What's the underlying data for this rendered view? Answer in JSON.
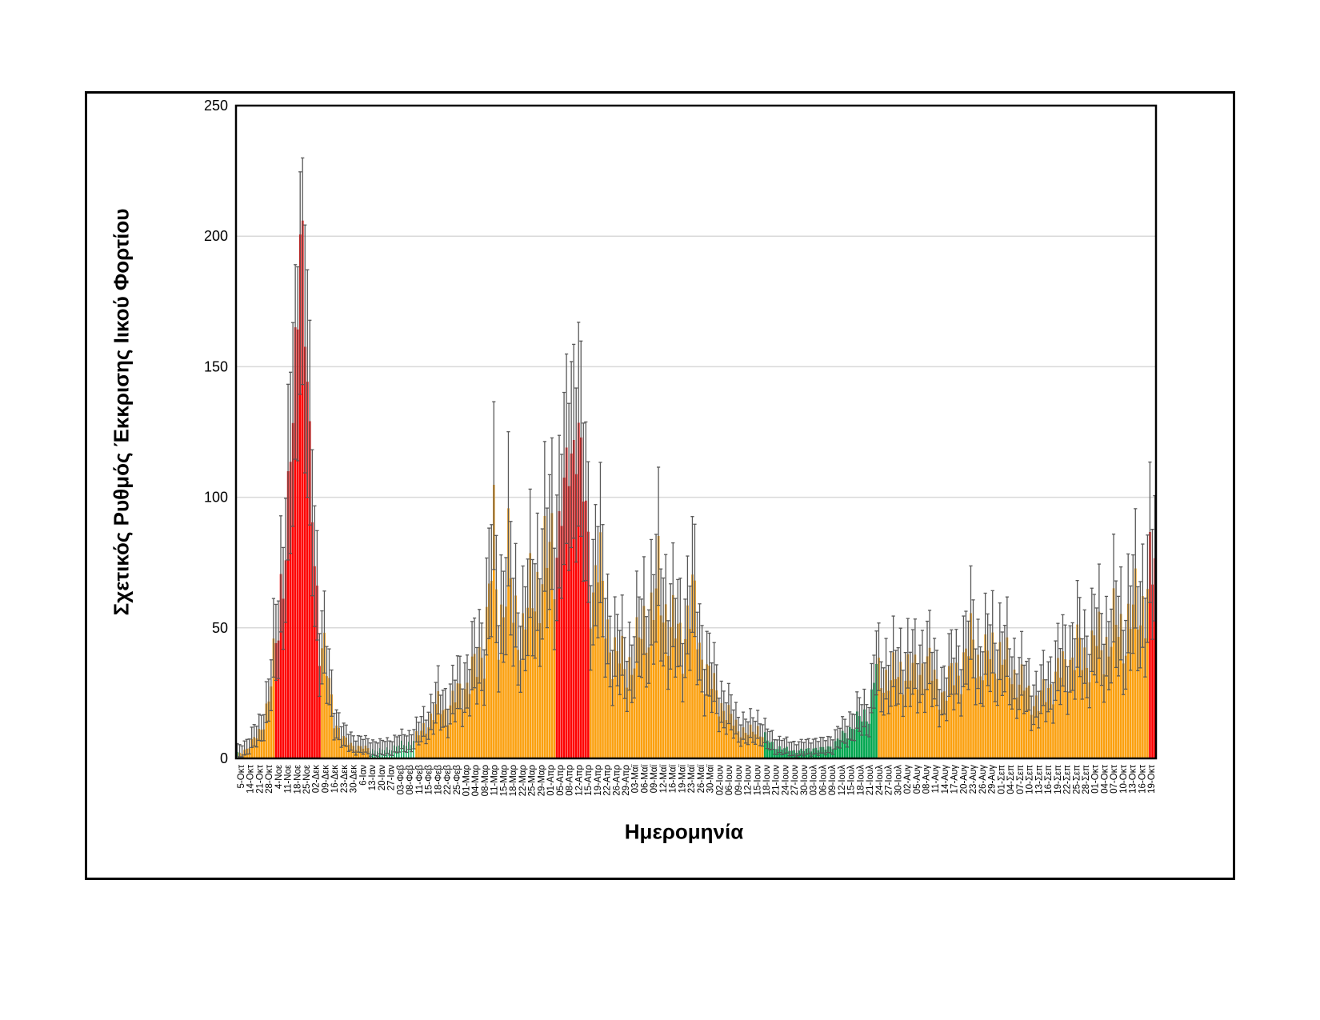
{
  "chart_data": {
    "type": "bar",
    "title": "",
    "ylabel": "Σχετικός Ρυθμός Έκκρισης Ιικού Φορτίου",
    "xlabel": "Ημερομηνία",
    "ylim": [
      0,
      250
    ],
    "yticks": [
      0,
      50,
      100,
      150,
      200,
      250
    ],
    "grid": "horizontal",
    "legend": "none",
    "n_bars": 380,
    "x_tick_labels": [
      "5-Οκτ",
      "14-Οκτ",
      "21-Οκτ",
      "28-Οκτ",
      "4-Νοε",
      "11-Νοε",
      "18-Νοε",
      "25-Νοε",
      "02-Δεκ",
      "09-Δεκ",
      "16-Δεκ",
      "23-Δεκ",
      "30-Δεκ",
      "6-Ιαν",
      "13-Ιαν",
      "20-Ιαν",
      "27-Ιαν",
      "03-Φεβ",
      "08-Φεβ",
      "11-Φεβ",
      "15-Φεβ",
      "18-Φεβ",
      "22-Φεβ",
      "25-Φεβ",
      "01-Μαρ",
      "04-Μαρ",
      "08-Μαρ",
      "11-Μαρ",
      "15-Μαρ",
      "18-Μαρ",
      "22-Μαρ",
      "25-Μαρ",
      "29-Μαρ",
      "01-Απρ",
      "05-Απρ",
      "08-Απρ",
      "12-Απρ",
      "15-Απρ",
      "19-Απρ",
      "22-Απρ",
      "26-Απρ",
      "29-Απρ",
      "03-Μαϊ",
      "06-Μαϊ",
      "09-Μαϊ",
      "12-Μαϊ",
      "16-Μαϊ",
      "19-Μαϊ",
      "23-Μαϊ",
      "26-Μαϊ",
      "30-Μαϊ",
      "02-Ιουν",
      "06-Ιουν",
      "09-Ιουν",
      "12-Ιουν",
      "15-Ιουν",
      "18-Ιουν",
      "21-Ιουν",
      "24-Ιουν",
      "27-Ιουν",
      "30-Ιουν",
      "03-Ιουλ",
      "06-Ιουλ",
      "09-Ιουλ",
      "12-Ιουλ",
      "15-Ιουλ",
      "18-Ιουλ",
      "21-Ιουλ",
      "24-Ιουλ",
      "27-Ιουλ",
      "30-Ιουλ",
      "02-Αυγ",
      "05-Αυγ",
      "08-Αυγ",
      "11-Αυγ",
      "14-Αυγ",
      "17-Αυγ",
      "20-Αυγ",
      "23-Αυγ",
      "26-Αυγ",
      "29-Αυγ",
      "01-Σεπ",
      "04-Σεπ",
      "07-Σεπ",
      "10-Σεπ",
      "13-Σεπ",
      "16-Σεπ",
      "19-Σεπ",
      "22-Σεπ",
      "25-Σεπ",
      "28-Σεπ",
      "01-Οκτ",
      "04-Οκτ",
      "07-Οκτ",
      "10-Οκτ",
      "13-Οκτ",
      "16-Οκτ",
      "19-Οκτ"
    ],
    "envelope_points_label_units": [
      [
        0,
        2
      ],
      [
        1,
        5
      ],
      [
        2,
        10
      ],
      [
        3,
        22
      ],
      [
        3.5,
        35
      ],
      [
        4,
        55
      ],
      [
        5,
        95
      ],
      [
        5.6,
        130
      ],
      [
        6,
        170
      ],
      [
        6.3,
        222
      ],
      [
        6.6,
        195
      ],
      [
        7,
        150
      ],
      [
        7.4,
        110
      ],
      [
        8,
        70
      ],
      [
        8.5,
        45
      ],
      [
        9,
        38
      ],
      [
        9.5,
        25
      ],
      [
        10,
        15
      ],
      [
        11,
        7
      ],
      [
        12,
        5
      ],
      [
        13,
        4
      ],
      [
        14,
        3.5
      ],
      [
        15,
        3
      ],
      [
        16,
        4
      ],
      [
        17,
        5
      ],
      [
        18,
        6
      ],
      [
        19,
        9
      ],
      [
        20,
        14
      ],
      [
        21,
        20
      ],
      [
        22,
        18
      ],
      [
        23,
        24
      ],
      [
        24,
        28
      ],
      [
        25,
        34
      ],
      [
        26,
        45
      ],
      [
        27,
        83
      ],
      [
        27.4,
        48
      ],
      [
        28,
        62
      ],
      [
        28.5,
        75
      ],
      [
        29,
        55
      ],
      [
        30,
        48
      ],
      [
        31,
        62
      ],
      [
        32,
        70
      ],
      [
        33,
        78
      ],
      [
        34,
        92
      ],
      [
        35,
        112
      ],
      [
        35.9,
        130
      ],
      [
        36.5,
        102
      ],
      [
        37,
        80
      ],
      [
        37.5,
        62
      ],
      [
        38,
        85
      ],
      [
        38.5,
        60
      ],
      [
        39,
        48
      ],
      [
        40,
        40
      ],
      [
        41,
        34
      ],
      [
        42,
        40
      ],
      [
        43,
        50
      ],
      [
        44,
        58
      ],
      [
        44.5,
        65
      ],
      [
        45,
        58
      ],
      [
        46,
        50
      ],
      [
        47,
        44
      ],
      [
        48,
        62
      ],
      [
        48.5,
        52
      ],
      [
        49,
        40
      ],
      [
        50,
        30
      ],
      [
        51,
        22
      ],
      [
        52,
        16
      ],
      [
        53,
        12
      ],
      [
        54,
        9
      ],
      [
        55,
        12
      ],
      [
        56,
        7
      ],
      [
        57,
        4.5
      ],
      [
        58,
        3.5
      ],
      [
        59,
        3
      ],
      [
        60,
        3
      ],
      [
        61,
        4
      ],
      [
        62,
        3.5
      ],
      [
        63,
        5
      ],
      [
        64,
        8
      ],
      [
        65,
        12
      ],
      [
        66,
        15
      ],
      [
        67,
        18
      ],
      [
        67.8,
        38
      ],
      [
        68,
        28
      ],
      [
        69,
        33
      ],
      [
        70,
        30
      ],
      [
        71,
        36
      ],
      [
        72,
        30
      ],
      [
        73,
        39
      ],
      [
        74,
        28
      ],
      [
        75,
        25
      ],
      [
        76,
        33
      ],
      [
        77,
        36
      ],
      [
        78,
        46
      ],
      [
        78.5,
        38
      ],
      [
        79,
        34
      ],
      [
        80,
        42
      ],
      [
        81,
        38
      ],
      [
        82,
        34
      ],
      [
        83,
        29
      ],
      [
        84,
        24
      ],
      [
        85,
        21
      ],
      [
        86,
        27
      ],
      [
        87,
        32
      ],
      [
        88,
        36
      ],
      [
        89,
        41
      ],
      [
        90,
        38
      ],
      [
        91,
        45
      ],
      [
        92,
        42
      ],
      [
        93,
        50
      ],
      [
        94,
        47
      ],
      [
        95,
        55
      ],
      [
        96,
        58
      ],
      [
        97,
        70
      ]
    ],
    "color_segments_bar_index": [
      {
        "from": 0,
        "to": 0,
        "color": "hatch"
      },
      {
        "from": 1,
        "to": 15,
        "color": "orange"
      },
      {
        "from": 16,
        "to": 34,
        "color": "red"
      },
      {
        "from": 35,
        "to": 54,
        "color": "orange"
      },
      {
        "from": 55,
        "to": 73,
        "color": "hatch"
      },
      {
        "from": 74,
        "to": 131,
        "color": "orange"
      },
      {
        "from": 132,
        "to": 145,
        "color": "red"
      },
      {
        "from": 146,
        "to": 217,
        "color": "orange"
      },
      {
        "from": 218,
        "to": 264,
        "color": "green"
      },
      {
        "from": 265,
        "to": 376,
        "color": "orange"
      },
      {
        "from": 377,
        "to": 379,
        "color": "red"
      }
    ],
    "notable_values": {
      "november_peak": 222,
      "november_peak_error_high": 246,
      "april_peak": 130,
      "april_peak_error_high": 169,
      "march_spike": 83,
      "march_spike_error_high": 113,
      "may_bump": 65,
      "last_bar": 72,
      "last_bar_error_high": 95
    },
    "colors": {
      "orange": "#FBA00F",
      "red": "#FE0000",
      "green": "#00A64F",
      "hatch_green": "#00A64F",
      "error_bar": "#595959",
      "gridline": "#D9D9D9",
      "frame": "#000000",
      "background": "#FFFFFF"
    }
  }
}
